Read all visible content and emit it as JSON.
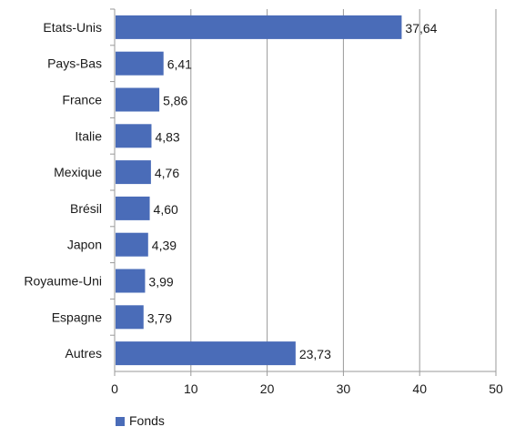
{
  "chart_data": {
    "type": "bar",
    "orientation": "horizontal",
    "categories": [
      "Etats-Unis",
      "Pays-Bas",
      "France",
      "Italie",
      "Mexique",
      "Brésil",
      "Japon",
      "Royaume-Uni",
      "Espagne",
      "Autres"
    ],
    "series": [
      {
        "name": "Fonds",
        "values": [
          37.64,
          6.41,
          5.86,
          4.83,
          4.76,
          4.6,
          4.39,
          3.99,
          3.79,
          23.73
        ],
        "labels": [
          "37,64",
          "6,41",
          "5,86",
          "4,83",
          "4,76",
          "4,60",
          "4,39",
          "3,99",
          "3,79",
          "23,73"
        ]
      }
    ],
    "xlim": [
      0,
      50
    ],
    "x_ticks": [
      0,
      10,
      20,
      30,
      40,
      50
    ],
    "grid": "vertical",
    "legend_position": "bottom-left",
    "colors": {
      "bar": "#4a6cb8",
      "grid": "#9a9a9a",
      "axis": "#9a9a9a"
    }
  }
}
